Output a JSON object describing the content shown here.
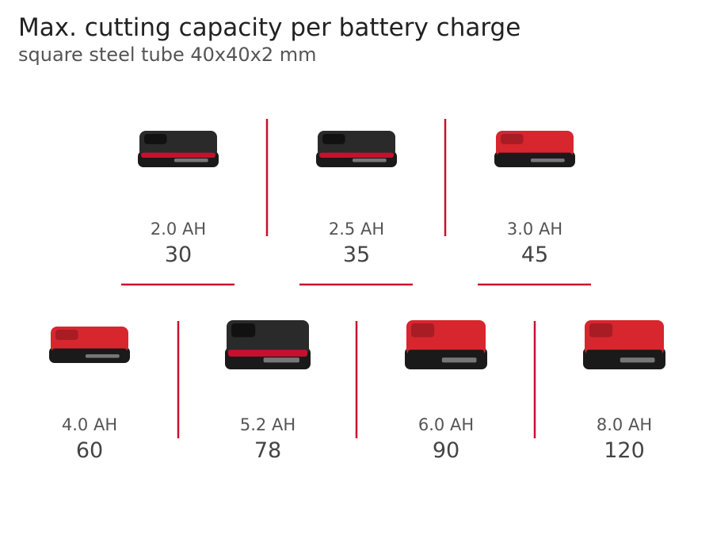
{
  "header": {
    "title": "Max. cutting capacity per battery charge",
    "subtitle": "square steel tube 40x40x2 mm"
  },
  "batteries": [
    {
      "capacity": "2.0 AH",
      "cuts": 30
    },
    {
      "capacity": "2.5 AH",
      "cuts": 35
    },
    {
      "capacity": "3.0 AH",
      "cuts": 45
    },
    {
      "capacity": "4.0 AH",
      "cuts": 60
    },
    {
      "capacity": "5.2 AH",
      "cuts": 78
    },
    {
      "capacity": "6.0 AH",
      "cuts": 90
    },
    {
      "capacity": "8.0 AH",
      "cuts": 120
    }
  ]
}
